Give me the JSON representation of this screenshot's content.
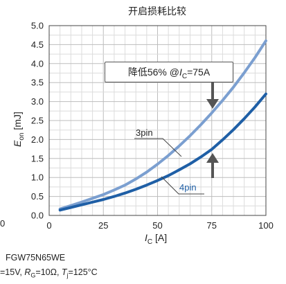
{
  "chart_data": {
    "type": "line",
    "title": "开启损耗比较",
    "xlabel": {
      "main": "I",
      "sub": "C",
      "unit": " [A]"
    },
    "ylabel": {
      "main": "E",
      "sub": "on",
      "unit": " [mJ]"
    },
    "xlim": [
      0,
      100
    ],
    "ylim": [
      0,
      5.0
    ],
    "x_ticks": [
      "0",
      "25",
      "50",
      "75",
      "100"
    ],
    "y_ticks": [
      "0.0",
      "0.5",
      "1.0",
      "1.5",
      "2.0",
      "2.5",
      "3.0",
      "3.5",
      "4.0",
      "4.5",
      "5.0"
    ],
    "left_edge_tick": "0",
    "grid": true,
    "series": [
      {
        "name": "3pin",
        "color": "#7b9fd0",
        "x": [
          5,
          10,
          15,
          20,
          25,
          30,
          35,
          40,
          45,
          50,
          55,
          60,
          65,
          70,
          75,
          80,
          85,
          90,
          95,
          100
        ],
        "y": [
          0.17,
          0.26,
          0.35,
          0.45,
          0.55,
          0.67,
          0.8,
          0.96,
          1.14,
          1.35,
          1.58,
          1.83,
          2.1,
          2.39,
          2.7,
          3.03,
          3.38,
          3.76,
          4.16,
          4.6
        ]
      },
      {
        "name": "4pin",
        "color": "#1f5fa6",
        "x": [
          5,
          10,
          15,
          20,
          25,
          30,
          35,
          40,
          45,
          50,
          55,
          60,
          65,
          70,
          75,
          80,
          85,
          90,
          95,
          100
        ],
        "y": [
          0.14,
          0.21,
          0.28,
          0.35,
          0.42,
          0.5,
          0.59,
          0.69,
          0.8,
          0.92,
          1.05,
          1.2,
          1.36,
          1.54,
          1.74,
          1.99,
          2.26,
          2.55,
          2.86,
          3.2
        ]
      }
    ],
    "annotation": {
      "prefix": "降低56% @",
      "var_main": "I",
      "var_sub": "C",
      "suffix": "=75A"
    }
  },
  "footnote": {
    "line1": "FGW75N65WE",
    "line2_parts": [
      "=15V, ",
      "R",
      "G",
      "=10Ω, ",
      "T",
      "j",
      "=125°C"
    ]
  }
}
